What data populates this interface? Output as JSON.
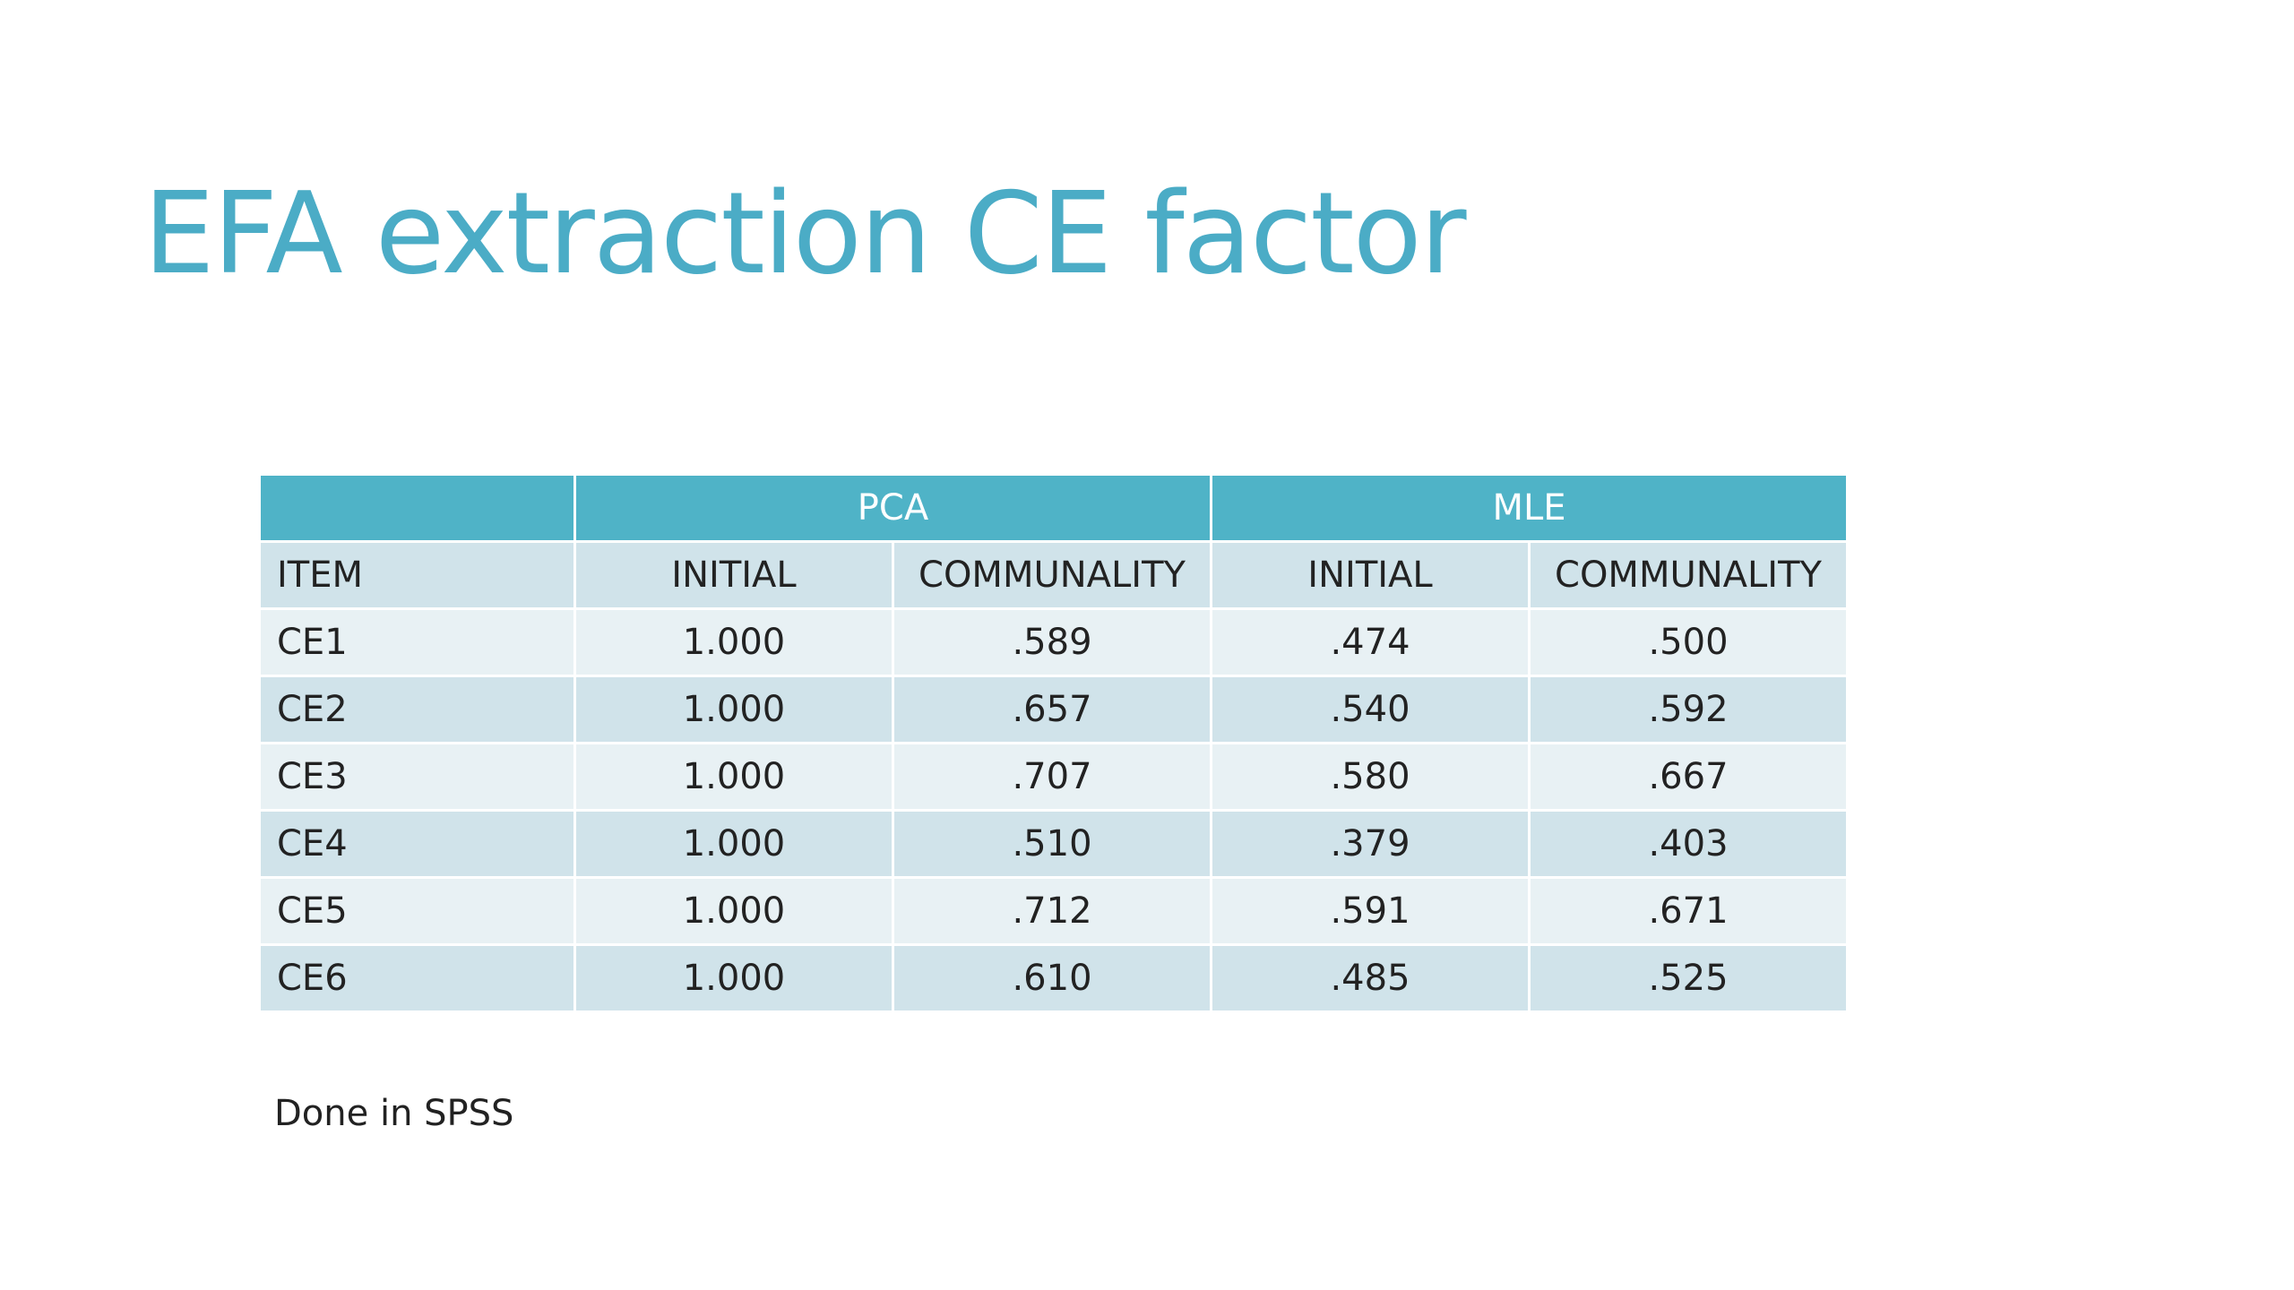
{
  "slide": {
    "title": "EFA extraction CE factor",
    "footnote": "Done in SPSS"
  },
  "table": {
    "group_headers": {
      "empty": "",
      "pca": "PCA",
      "mle": "MLE"
    },
    "column_headers": [
      "ITEM",
      "INITIAL",
      "COMMUNALITY",
      "INITIAL",
      "COMMUNALITY"
    ],
    "rows": [
      [
        "CE1",
        "1.000",
        ".589",
        ".474",
        ".500"
      ],
      [
        "CE2",
        "1.000",
        ".657",
        ".540",
        ".592"
      ],
      [
        "CE3",
        "1.000",
        ".707",
        ".580",
        ".667"
      ],
      [
        "CE4",
        "1.000",
        ".510",
        ".379",
        ".403"
      ],
      [
        "CE5",
        "1.000",
        ".712",
        ".591",
        ".671"
      ],
      [
        "CE6",
        "1.000",
        ".610",
        ".485",
        ".525"
      ]
    ]
  },
  "colors": {
    "title": "#4BACC6",
    "header": "#4FB3C7",
    "row_light": "#E8F1F4",
    "row_dark": "#D0E3EA"
  }
}
